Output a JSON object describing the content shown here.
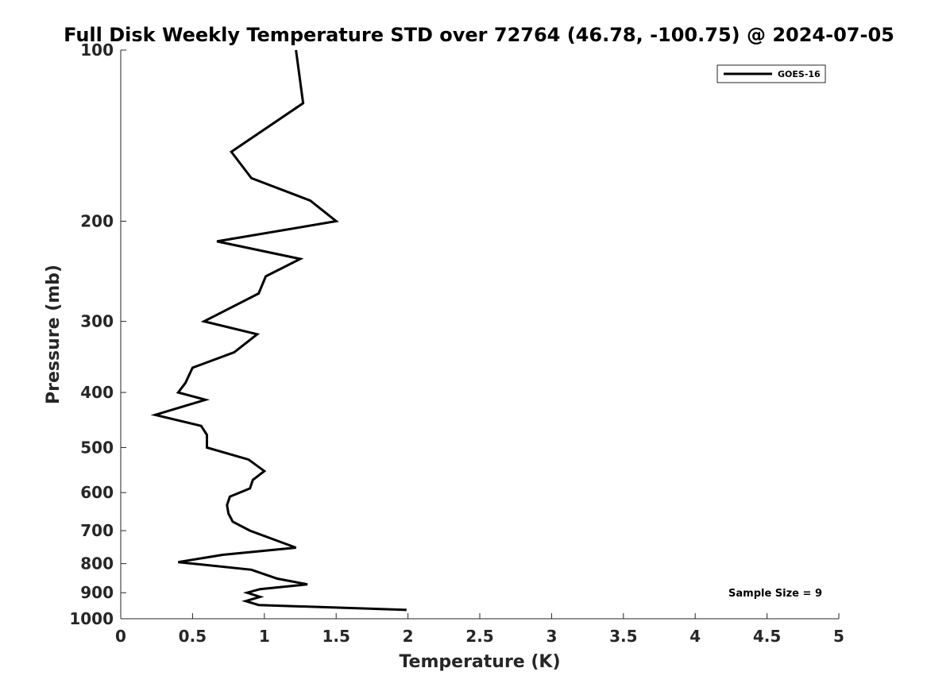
{
  "chart_data": {
    "type": "line",
    "title": "Full Disk Weekly Temperature STD over 72764 (46.78, -100.75) @ 2024-07-05",
    "xlabel": "Temperature (K)",
    "ylabel": "Pressure (mb)",
    "xlim": [
      0,
      5
    ],
    "ylim": [
      100,
      1000
    ],
    "y_scale": "log",
    "y_reversed": true,
    "x_ticks": [
      "0",
      "0.5",
      "1",
      "1.5",
      "2",
      "2.5",
      "3",
      "3.5",
      "4",
      "4.5",
      "5"
    ],
    "y_ticks": [
      "100",
      "200",
      "300",
      "400",
      "500",
      "600",
      "700",
      "800",
      "900",
      "1000"
    ],
    "grid": false,
    "legend_position": "top-right",
    "series": [
      {
        "name": "GOES-16",
        "color": "#000000",
        "points": [
          [
            1.22,
            100
          ],
          [
            1.27,
            124
          ],
          [
            0.77,
            151
          ],
          [
            0.91,
            168
          ],
          [
            1.32,
            184
          ],
          [
            1.5,
            200
          ],
          [
            0.67,
            217
          ],
          [
            1.25,
            233
          ],
          [
            1.01,
            250
          ],
          [
            0.96,
            268
          ],
          [
            0.58,
            300
          ],
          [
            0.95,
            316
          ],
          [
            0.79,
            340
          ],
          [
            0.5,
            362
          ],
          [
            0.45,
            385
          ],
          [
            0.4,
            400
          ],
          [
            0.59,
            412
          ],
          [
            0.24,
            438
          ],
          [
            0.56,
            458
          ],
          [
            0.6,
            475
          ],
          [
            0.6,
            500
          ],
          [
            0.89,
            525
          ],
          [
            1.0,
            550
          ],
          [
            0.92,
            570
          ],
          [
            0.9,
            590
          ],
          [
            0.76,
            610
          ],
          [
            0.74,
            631
          ],
          [
            0.75,
            653
          ],
          [
            0.78,
            675
          ],
          [
            0.9,
            700
          ],
          [
            1.22,
            750
          ],
          [
            0.71,
            772
          ],
          [
            0.4,
            795
          ],
          [
            0.91,
            820
          ],
          [
            1.09,
            850
          ],
          [
            1.3,
            870
          ],
          [
            0.97,
            887
          ],
          [
            0.88,
            900
          ],
          [
            0.97,
            915
          ],
          [
            0.87,
            931
          ],
          [
            0.96,
            946
          ],
          [
            1.99,
            965
          ]
        ]
      }
    ],
    "annotation": "Sample Size = 9"
  }
}
